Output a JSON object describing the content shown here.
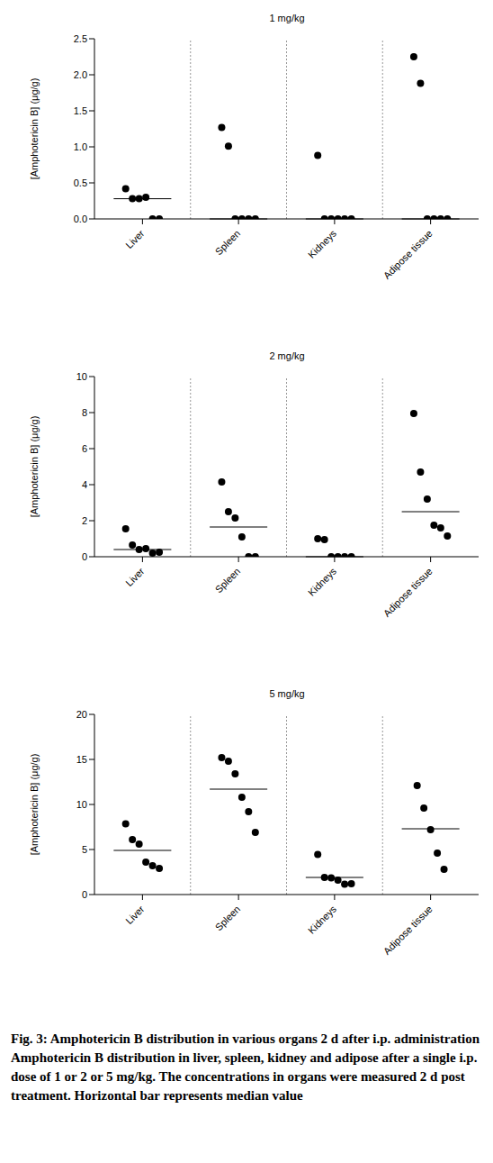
{
  "chart_data": [
    {
      "type": "scatter",
      "title": "1 mg/kg",
      "y_label": "[Amphotericin B] (μg/g)",
      "categories": [
        "Liver",
        "Spleen",
        "Kidneys",
        "Adipose tissue"
      ],
      "values": [
        [
          0.42,
          0.28,
          0.28,
          0.3,
          0.0,
          0.0
        ],
        [
          1.27,
          1.01,
          0.0,
          0.0,
          0.0,
          0.0
        ],
        [
          0.88,
          0.0,
          0.0,
          0.0,
          0.0,
          0.0
        ],
        [
          2.25,
          1.88,
          0.0,
          0.0,
          0.0,
          0.0
        ]
      ],
      "medians": [
        0.28,
        0.0,
        0.0,
        0.0
      ],
      "color": "#000000",
      "marker": "circle",
      "ylim": [
        0,
        2.5
      ],
      "yticks": [
        {
          "value": 0,
          "label": "0.0"
        },
        0.5,
        {
          "value": 1,
          "label": "1.0"
        },
        1.5,
        {
          "value": 2,
          "label": "2.0"
        },
        2.5
      ]
    },
    {
      "type": "scatter",
      "title": "2 mg/kg",
      "y_label": "[Amphotericin B] (μg/g)",
      "categories": [
        "Liver",
        "Spleen",
        "Kidneys",
        "Adipose tissue"
      ],
      "values": [
        [
          1.55,
          0.65,
          0.4,
          0.45,
          0.2,
          0.25
        ],
        [
          4.15,
          2.5,
          2.15,
          1.1,
          0.0,
          0.0
        ],
        [
          1.0,
          0.95,
          0.0,
          0.0,
          0.0,
          0.0
        ],
        [
          7.95,
          4.7,
          3.2,
          1.75,
          1.6,
          1.15
        ]
      ],
      "medians": [
        0.4,
        1.65,
        0.0,
        2.5
      ],
      "color": "#000000",
      "marker": "circle",
      "ylim": [
        0,
        10
      ],
      "yticks": [
        0,
        2,
        4,
        6,
        8,
        10
      ]
    },
    {
      "type": "scatter",
      "title": "5 mg/kg",
      "y_label": "[Amphotericin B] (μg/g)",
      "categories": [
        "Liver",
        "Spleen",
        "Kidneys",
        "Adipose tissue"
      ],
      "values": [
        [
          7.85,
          6.1,
          5.6,
          3.6,
          3.2,
          2.9
        ],
        [
          15.2,
          14.8,
          13.4,
          10.8,
          9.2,
          6.9
        ],
        [
          4.45,
          1.9,
          1.85,
          1.6,
          1.15,
          1.2
        ],
        [
          12.1,
          9.6,
          7.2,
          4.6,
          2.8
        ]
      ],
      "medians": [
        4.9,
        11.7,
        1.9,
        7.3
      ],
      "color": "#000000",
      "marker": "circle",
      "ylim": [
        0,
        20
      ],
      "yticks": [
        0,
        5,
        10,
        15,
        20
      ]
    }
  ],
  "caption": {
    "title": "Fig. 3: Amphotericin B distribution in various organs 2 d after i.p. administration",
    "text": "Amphotericin B distribution in liver, spleen, kidney and adipose after a single i.p. dose of 1 or 2 or 5 mg/kg. The concentrations in organs were measured 2 d post treatment. Horizontal bar represents median value"
  }
}
